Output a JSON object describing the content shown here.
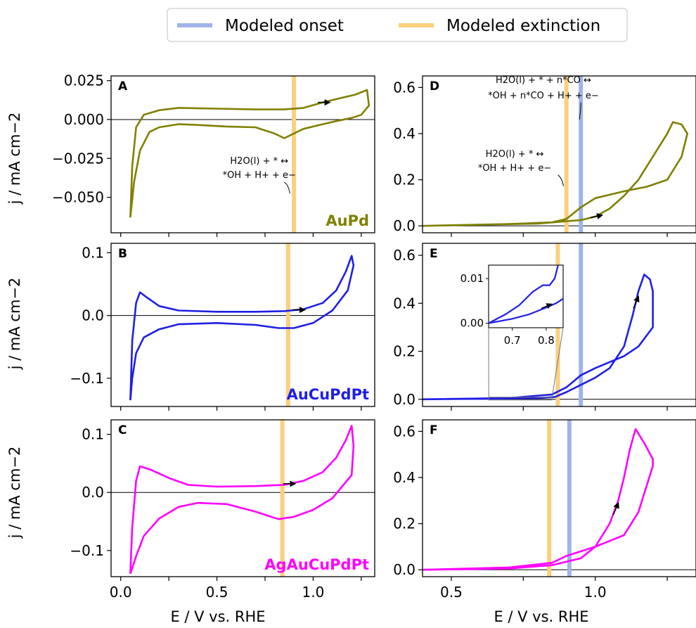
{
  "legend": {
    "placement": "top-center",
    "items": [
      {
        "label": "Modeled onset",
        "color": "#9fb4e8"
      },
      {
        "label": "Modeled extinction",
        "color": "#fbcf7e"
      }
    ]
  },
  "ylabel": "j / mA cm−2",
  "xlabel": "E / V vs. RHE",
  "chart_data": [
    {
      "panel": "A",
      "type": "line",
      "sample": "AuPd",
      "color": "#808000",
      "xlim": [
        -0.05,
        1.32
      ],
      "ylim": [
        -0.0728,
        0.028
      ],
      "yticks": [
        0.025,
        0.0,
        -0.025,
        -0.05
      ],
      "ytick_labels": [
        "0.025",
        "0.000",
        "−0.025",
        "−0.050"
      ],
      "extinction": 0.9,
      "onset": null,
      "annotation": [
        "H2O(l) + * ↔",
        "*OH + H+ + e−"
      ],
      "points": [
        [
          0.05,
          -0.063
        ],
        [
          0.06,
          -0.03
        ],
        [
          0.08,
          -0.005
        ],
        [
          0.12,
          0.003
        ],
        [
          0.2,
          0.006
        ],
        [
          0.3,
          0.0075
        ],
        [
          0.5,
          0.007
        ],
        [
          0.7,
          0.0065
        ],
        [
          0.85,
          0.0065
        ],
        [
          0.95,
          0.0075
        ],
        [
          1.05,
          0.011
        ],
        [
          1.15,
          0.014
        ],
        [
          1.22,
          0.016
        ],
        [
          1.28,
          0.019
        ],
        [
          1.29,
          0.009
        ],
        [
          1.25,
          0.003
        ],
        [
          1.2,
          0.001
        ],
        [
          1.12,
          -0.001
        ],
        [
          1.05,
          -0.003
        ],
        [
          0.95,
          -0.006
        ],
        [
          0.85,
          -0.012
        ],
        [
          0.8,
          -0.009
        ],
        [
          0.7,
          -0.005
        ],
        [
          0.55,
          -0.0045
        ],
        [
          0.4,
          -0.0035
        ],
        [
          0.3,
          -0.003
        ],
        [
          0.2,
          -0.005
        ],
        [
          0.15,
          -0.008
        ],
        [
          0.1,
          -0.02
        ],
        [
          0.07,
          -0.04
        ],
        [
          0.05,
          -0.063
        ]
      ],
      "arrow": {
        "x": 1.05,
        "y": 0.011,
        "dir": "forward"
      }
    },
    {
      "panel": "B",
      "type": "line",
      "sample": "AuCuPdPt",
      "color": "#1f1fe6",
      "xlim": [
        -0.05,
        1.32
      ],
      "ylim": [
        -0.145,
        0.115
      ],
      "yticks": [
        0.1,
        0.0,
        -0.1
      ],
      "ytick_labels": [
        "0.1",
        "0.0",
        "−0.1"
      ],
      "extinction": 0.87,
      "onset": null,
      "points": [
        [
          0.05,
          -0.135
        ],
        [
          0.06,
          -0.04
        ],
        [
          0.08,
          0.02
        ],
        [
          0.1,
          0.037
        ],
        [
          0.13,
          0.03
        ],
        [
          0.2,
          0.015
        ],
        [
          0.3,
          0.008
        ],
        [
          0.5,
          0.006
        ],
        [
          0.7,
          0.006
        ],
        [
          0.85,
          0.007
        ],
        [
          0.95,
          0.01
        ],
        [
          1.05,
          0.02
        ],
        [
          1.12,
          0.04
        ],
        [
          1.17,
          0.07
        ],
        [
          1.2,
          0.095
        ],
        [
          1.21,
          0.08
        ],
        [
          1.18,
          0.04
        ],
        [
          1.1,
          0.008
        ],
        [
          1.0,
          -0.012
        ],
        [
          0.9,
          -0.02
        ],
        [
          0.82,
          -0.02
        ],
        [
          0.7,
          -0.015
        ],
        [
          0.5,
          -0.012
        ],
        [
          0.3,
          -0.014
        ],
        [
          0.2,
          -0.022
        ],
        [
          0.12,
          -0.035
        ],
        [
          0.08,
          -0.06
        ],
        [
          0.06,
          -0.1
        ],
        [
          0.05,
          -0.135
        ]
      ],
      "arrow": {
        "x": 0.92,
        "y": 0.009,
        "dir": "forward"
      }
    },
    {
      "panel": "C",
      "type": "line",
      "sample": "AgAuCuPdPt",
      "color": "#ff00ff",
      "xlim": [
        -0.05,
        1.32
      ],
      "ylim": [
        -0.145,
        0.125
      ],
      "yticks": [
        0.1,
        0.0,
        -0.1
      ],
      "ytick_labels": [
        "0.1",
        "0.0",
        "−0.1"
      ],
      "extinction": 0.84,
      "onset": null,
      "points": [
        [
          0.05,
          -0.14
        ],
        [
          0.06,
          -0.06
        ],
        [
          0.08,
          0.02
        ],
        [
          0.1,
          0.045
        ],
        [
          0.15,
          0.04
        ],
        [
          0.25,
          0.025
        ],
        [
          0.35,
          0.013
        ],
        [
          0.5,
          0.01
        ],
        [
          0.7,
          0.011
        ],
        [
          0.85,
          0.013
        ],
        [
          0.95,
          0.02
        ],
        [
          1.05,
          0.035
        ],
        [
          1.12,
          0.06
        ],
        [
          1.17,
          0.09
        ],
        [
          1.2,
          0.115
        ],
        [
          1.21,
          0.08
        ],
        [
          1.2,
          0.03
        ],
        [
          1.1,
          -0.01
        ],
        [
          1.0,
          -0.03
        ],
        [
          0.9,
          -0.042
        ],
        [
          0.82,
          -0.046
        ],
        [
          0.7,
          -0.033
        ],
        [
          0.55,
          -0.02
        ],
        [
          0.4,
          -0.018
        ],
        [
          0.3,
          -0.025
        ],
        [
          0.2,
          -0.045
        ],
        [
          0.12,
          -0.075
        ],
        [
          0.08,
          -0.11
        ],
        [
          0.06,
          -0.13
        ],
        [
          0.05,
          -0.14
        ]
      ],
      "arrow": {
        "x": 0.87,
        "y": 0.015,
        "dir": "forward"
      }
    },
    {
      "panel": "D",
      "type": "line",
      "sample": "AuPd",
      "color": "#808000",
      "xlim": [
        0.4,
        1.35
      ],
      "ylim": [
        -0.03,
        0.65
      ],
      "yticks": [
        0.0,
        0.2,
        0.4,
        0.6
      ],
      "ytick_labels": [
        "0.0",
        "0.2",
        "0.4",
        "0.6"
      ],
      "extinction": 0.9,
      "onset": 0.95,
      "annotation_top": [
        "H2O(l) + * + n*CO ↔",
        "*OH + n*CO + H+ + e−"
      ],
      "annotation": [
        "H2O(l) + * ↔",
        "*OH + H+ + e−"
      ],
      "points": [
        [
          0.4,
          0.0
        ],
        [
          0.6,
          0.005
        ],
        [
          0.8,
          0.01
        ],
        [
          0.9,
          0.02
        ],
        [
          0.95,
          0.025
        ],
        [
          1.0,
          0.04
        ],
        [
          1.05,
          0.075
        ],
        [
          1.1,
          0.13
        ],
        [
          1.15,
          0.2
        ],
        [
          1.2,
          0.3
        ],
        [
          1.25,
          0.4
        ],
        [
          1.27,
          0.45
        ],
        [
          1.3,
          0.44
        ],
        [
          1.32,
          0.4
        ],
        [
          1.3,
          0.3
        ],
        [
          1.25,
          0.2
        ],
        [
          1.18,
          0.17
        ],
        [
          1.1,
          0.15
        ],
        [
          1.0,
          0.12
        ],
        [
          0.95,
          0.08
        ],
        [
          0.9,
          0.03
        ],
        [
          0.85,
          0.015
        ],
        [
          0.7,
          0.008
        ],
        [
          0.4,
          0.0
        ]
      ],
      "arrow": {
        "x": 1.0,
        "y": 0.04,
        "dir": "forward"
      }
    },
    {
      "panel": "E",
      "type": "line",
      "sample": "AuCuPdPt",
      "color": "#1f1fe6",
      "xlim": [
        0.4,
        1.35
      ],
      "ylim": [
        -0.03,
        0.65
      ],
      "yticks": [
        0.0,
        0.2,
        0.4,
        0.6
      ],
      "ytick_labels": [
        "0.0",
        "0.2",
        "0.4",
        "0.6"
      ],
      "extinction": 0.87,
      "onset": 0.95,
      "points": [
        [
          0.4,
          0.0
        ],
        [
          0.6,
          0.002
        ],
        [
          0.8,
          0.005
        ],
        [
          0.86,
          0.01
        ],
        [
          0.9,
          0.03
        ],
        [
          0.95,
          0.06
        ],
        [
          1.0,
          0.09
        ],
        [
          1.05,
          0.13
        ],
        [
          1.1,
          0.22
        ],
        [
          1.13,
          0.35
        ],
        [
          1.15,
          0.45
        ],
        [
          1.17,
          0.52
        ],
        [
          1.19,
          0.5
        ],
        [
          1.2,
          0.45
        ],
        [
          1.2,
          0.3
        ],
        [
          1.15,
          0.22
        ],
        [
          1.1,
          0.18
        ],
        [
          1.0,
          0.13
        ],
        [
          0.95,
          0.1
        ],
        [
          0.9,
          0.05
        ],
        [
          0.85,
          0.02
        ],
        [
          0.7,
          0.005
        ],
        [
          0.4,
          0.0
        ]
      ],
      "arrow": {
        "x": 1.14,
        "y": 0.4,
        "dir": "forward"
      },
      "inset": {
        "xlim": [
          0.63,
          0.85
        ],
        "ylim": [
          -0.001,
          0.013
        ],
        "xticks": [
          0.7,
          0.8
        ],
        "xtick_labels": [
          "0.7",
          "0.8"
        ],
        "yticks": [
          0.0,
          0.01
        ],
        "ytick_labels": [
          "0.00",
          "0.01"
        ],
        "upper": [
          [
            0.63,
            0.0
          ],
          [
            0.68,
            0.002
          ],
          [
            0.72,
            0.004
          ],
          [
            0.76,
            0.007
          ],
          [
            0.79,
            0.0085
          ],
          [
            0.81,
            0.0085
          ],
          [
            0.825,
            0.01
          ],
          [
            0.835,
            0.013
          ]
        ],
        "lower": [
          [
            0.63,
            0.0
          ],
          [
            0.7,
            0.001
          ],
          [
            0.75,
            0.002
          ],
          [
            0.8,
            0.0035
          ],
          [
            0.83,
            0.0045
          ],
          [
            0.85,
            0.0055
          ]
        ],
        "arrow": {
          "x": 0.8,
          "y": 0.0038
        }
      }
    },
    {
      "panel": "F",
      "type": "line",
      "sample": "AgAuCuPdPt",
      "color": "#ff00ff",
      "xlim": [
        0.4,
        1.35
      ],
      "ylim": [
        -0.03,
        0.65
      ],
      "yticks": [
        0.0,
        0.2,
        0.4,
        0.6
      ],
      "ytick_labels": [
        "0.0",
        "0.2",
        "0.4",
        "0.6"
      ],
      "extinction": 0.84,
      "onset": 0.91,
      "xticks": [
        0.5,
        1.0
      ],
      "xtick_labels": [
        "0.5",
        "1.0"
      ],
      "points": [
        [
          0.4,
          0.0
        ],
        [
          0.7,
          0.005
        ],
        [
          0.85,
          0.02
        ],
        [
          0.95,
          0.05
        ],
        [
          1.0,
          0.1
        ],
        [
          1.05,
          0.2
        ],
        [
          1.08,
          0.3
        ],
        [
          1.1,
          0.4
        ],
        [
          1.12,
          0.52
        ],
        [
          1.14,
          0.61
        ],
        [
          1.17,
          0.55
        ],
        [
          1.2,
          0.48
        ],
        [
          1.2,
          0.45
        ],
        [
          1.15,
          0.25
        ],
        [
          1.1,
          0.15
        ],
        [
          1.0,
          0.1
        ],
        [
          0.9,
          0.06
        ],
        [
          0.85,
          0.03
        ],
        [
          0.7,
          0.01
        ],
        [
          0.4,
          0.0
        ]
      ],
      "arrow": {
        "x": 1.07,
        "y": 0.26,
        "dir": "forward"
      }
    }
  ],
  "bottom_xticks_left": {
    "values": [
      0.0,
      0.5,
      1.0
    ],
    "labels": [
      "0.0",
      "0.5",
      "1.0"
    ]
  }
}
